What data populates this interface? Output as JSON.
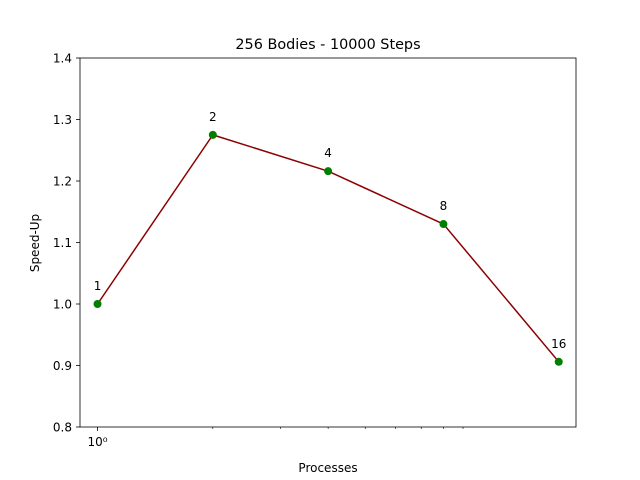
{
  "chart_data": {
    "type": "line",
    "title": "256 Bodies - 10000 Steps",
    "xlabel": "Processes",
    "ylabel": "Speed-Up",
    "x_scale": "log",
    "x": [
      1,
      2,
      4,
      8,
      16
    ],
    "series": [
      {
        "values": [
          1.0,
          1.275,
          1.216,
          1.13,
          0.906
        ]
      }
    ],
    "point_labels": [
      "1",
      "2",
      "4",
      "8",
      "16"
    ],
    "ylim": [
      0.8,
      1.4
    ],
    "yticks": [
      "0.8",
      "0.9",
      "1.0",
      "1.1",
      "1.2",
      "1.3",
      "1.4"
    ],
    "xtick_major_label": "10⁰",
    "grid": false,
    "line_color": "#8b0000",
    "marker_color": "#008000"
  }
}
